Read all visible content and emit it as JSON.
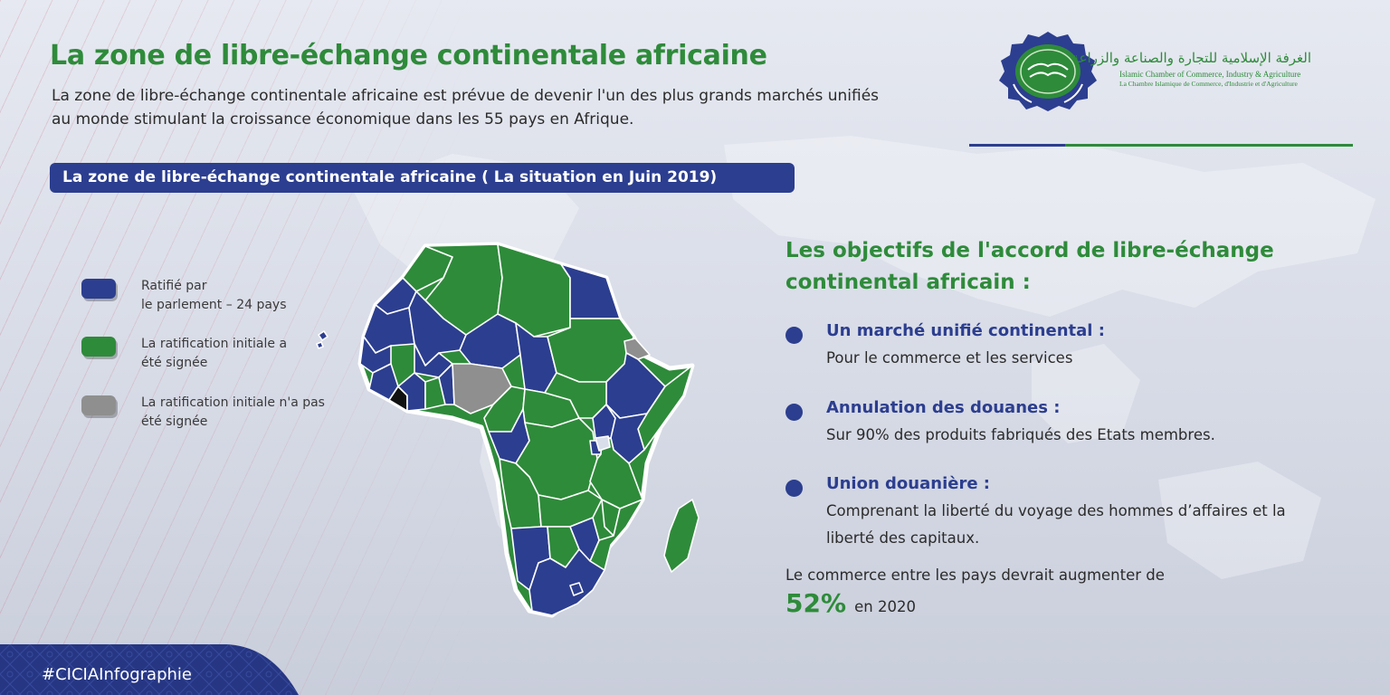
{
  "header": {
    "title": "La zone de libre-échange continentale africaine",
    "intro_line1": "La zone de libre-échange continentale africaine est prévue de devenir l'un des plus grands marchés unifiés",
    "intro_line2": "au monde stimulant la croissance économique dans les 55 pays en Afrique.",
    "status_label": "La zone de libre-échange continentale africaine ( La situation en Juin 2019)"
  },
  "logo": {
    "arabic": "الغرفة الإسلامية للتجارة والصناعة والزراعة",
    "english": "Islamic Chamber of Commerce, Industry & Agriculture",
    "french": "La Chambre Islamique de Commerce, d'Industrie et d'Agriculture"
  },
  "legend": [
    {
      "line1": "Ratifié par",
      "line2": "le parlement – 24 pays",
      "color": "#2c3e8f"
    },
    {
      "line1": "La ratification initiale a",
      "line2": "été signée",
      "color": "#2e8b3a"
    },
    {
      "line1": "La ratification initiale n'a pas",
      "line2": "été signée",
      "color": "#8f8f8f"
    }
  ],
  "colors": {
    "ratified": "#2c3e8f",
    "signed": "#2e8b3a",
    "not_signed": "#8f8f8f",
    "not_member": "#111111"
  },
  "objectives": {
    "title_line1": "Les objectifs de l'accord de libre-échange",
    "title_line2": "continental africain :",
    "items": [
      {
        "head": "Un marché unifié continental :",
        "desc1": "Pour le commerce et les services",
        "desc2": ""
      },
      {
        "head": "Annulation des douanes :",
        "desc1": "Sur 90% des produits fabriqués des Etats membres.",
        "desc2": ""
      },
      {
        "head": "Union douanière :",
        "desc1": "Comprenant la liberté du voyage des hommes d’affaires et la",
        "desc2": "liberté des capitaux."
      }
    ]
  },
  "trade": {
    "line": "Le commerce entre les pays devrait augmenter de",
    "percent": "52%",
    "year_label": "en 2020"
  },
  "footer": {
    "hashtag": "#CICIAInfographie"
  }
}
